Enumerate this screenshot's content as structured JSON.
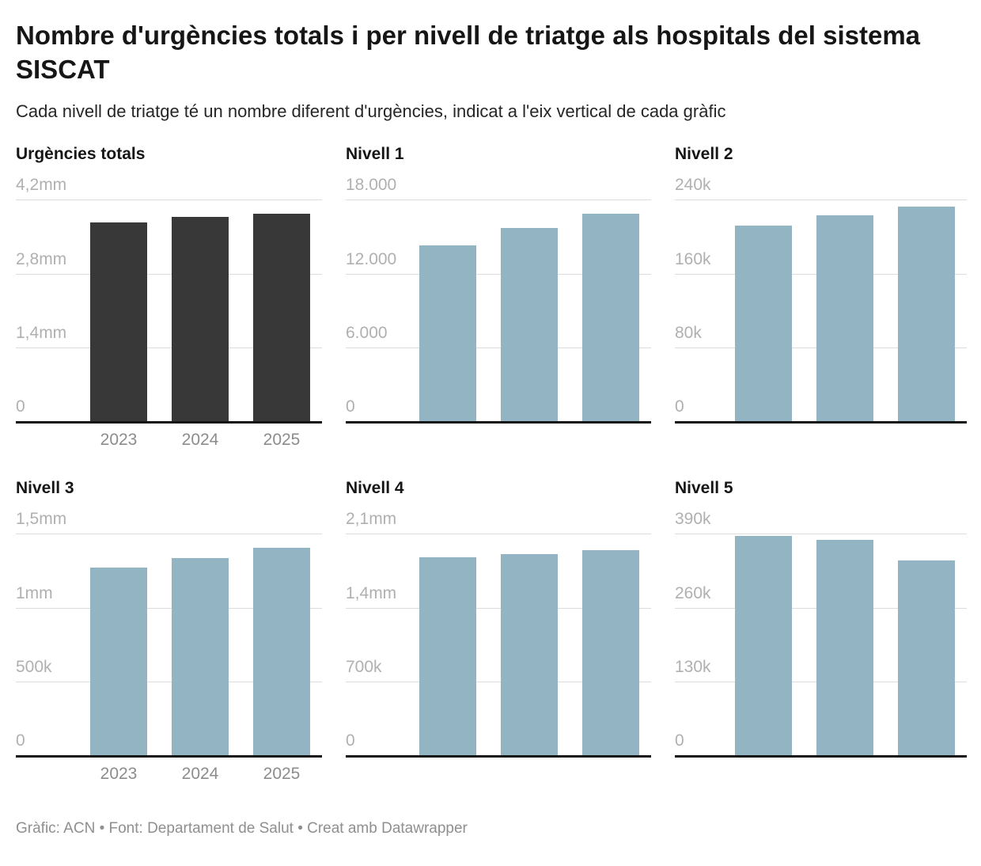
{
  "header": {
    "title": "Nombre d'urgències totals i per nivell de triatge als hospitals del sistema SISCAT",
    "subtitle": "Cada nivell de triatge té un nombre diferent d'urgències, indicat a l'eix vertical de cada gràfic"
  },
  "footer": {
    "credit": "Gràfic: ACN • Font: Departament de Salut • Creat amb Datawrapper"
  },
  "colors": {
    "total_bar": "#383838",
    "level_bar": "#93b5c3",
    "gridline": "#dcdcdc",
    "axis_line": "#141414",
    "y_tick_label": "#b0b0b0",
    "x_tick_label": "#8c8c8c"
  },
  "chart_data": [
    {
      "type": "bar",
      "title": "Urgències totals",
      "categories": [
        "2023",
        "2024",
        "2025"
      ],
      "values": [
        3770000,
        3870000,
        3940000
      ],
      "ylim": [
        0,
        4200000
      ],
      "yticks": [
        "4,2mm",
        "2,8mm",
        "1,4mm",
        "0"
      ],
      "show_x_labels": true,
      "bar_color": "#383838",
      "grid": true,
      "legend": "none"
    },
    {
      "type": "bar",
      "title": "Nivell 1",
      "categories": [
        "2023",
        "2024",
        "2025"
      ],
      "values": [
        14300,
        15700,
        16900
      ],
      "ylim": [
        0,
        18000
      ],
      "yticks": [
        "18.000",
        "12.000",
        "6.000",
        "0"
      ],
      "show_x_labels": false,
      "bar_color": "#93b5c3",
      "grid": true,
      "legend": "none"
    },
    {
      "type": "bar",
      "title": "Nivell 2",
      "categories": [
        "2023",
        "2024",
        "2025"
      ],
      "values": [
        212000,
        223000,
        233000
      ],
      "ylim": [
        0,
        240000
      ],
      "yticks": [
        "240k",
        "160k",
        "80k",
        "0"
      ],
      "show_x_labels": false,
      "bar_color": "#93b5c3",
      "grid": true,
      "legend": "none"
    },
    {
      "type": "bar",
      "title": "Nivell 3",
      "categories": [
        "2023",
        "2024",
        "2025"
      ],
      "values": [
        1270000,
        1335000,
        1405000
      ],
      "ylim": [
        0,
        1500000
      ],
      "yticks": [
        "1,5mm",
        "1mm",
        "500k",
        "0"
      ],
      "show_x_labels": true,
      "bar_color": "#93b5c3",
      "grid": true,
      "legend": "none"
    },
    {
      "type": "bar",
      "title": "Nivell 4",
      "categories": [
        "2023",
        "2024",
        "2025"
      ],
      "values": [
        1880000,
        1905000,
        1945000
      ],
      "ylim": [
        0,
        2100000
      ],
      "yticks": [
        "2,1mm",
        "1,4mm",
        "700k",
        "0"
      ],
      "show_x_labels": false,
      "bar_color": "#93b5c3",
      "grid": true,
      "legend": "none"
    },
    {
      "type": "bar",
      "title": "Nivell 5",
      "categories": [
        "2023",
        "2024",
        "2025"
      ],
      "values": [
        386000,
        379000,
        343000
      ],
      "ylim": [
        0,
        390000
      ],
      "yticks": [
        "390k",
        "260k",
        "130k",
        "0"
      ],
      "show_x_labels": false,
      "bar_color": "#93b5c3",
      "grid": true,
      "legend": "none"
    }
  ]
}
